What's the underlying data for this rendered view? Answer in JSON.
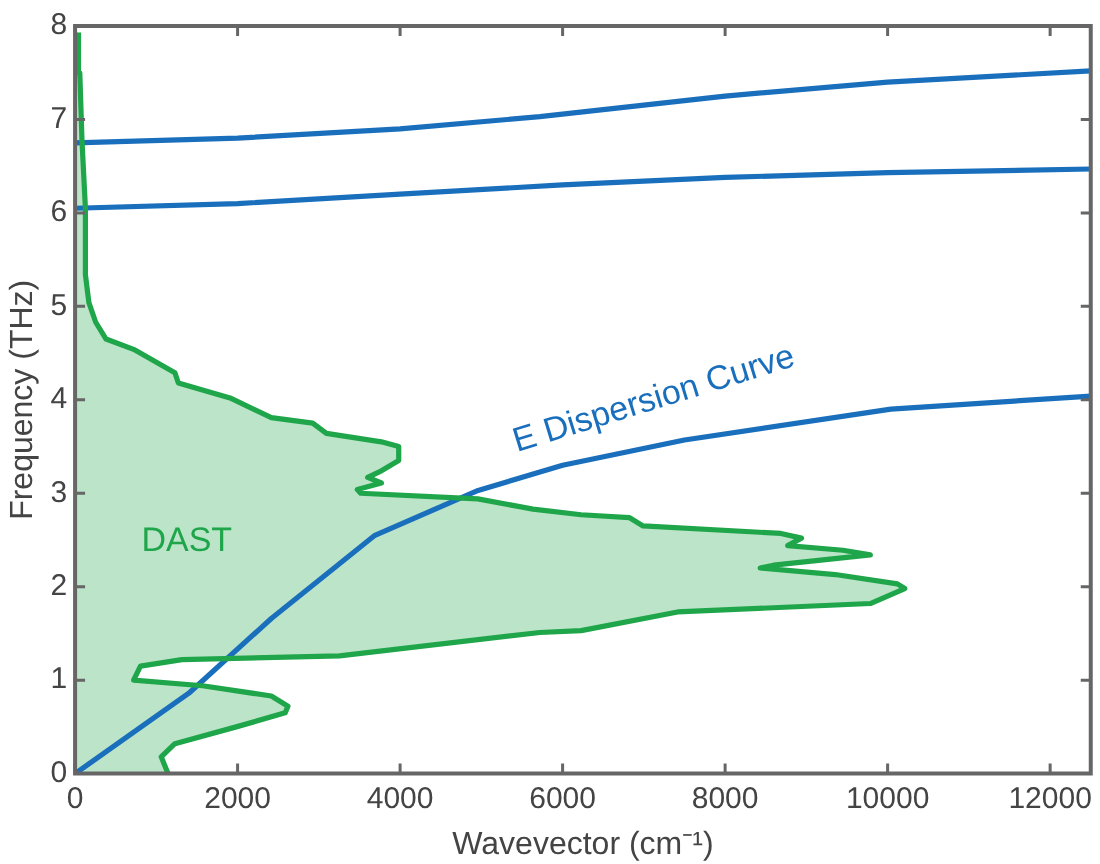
{
  "chart_data": {
    "type": "line",
    "xlabel": "Wavevector (cm⁻¹)",
    "ylabel": "Frequency (THz)",
    "xlim": [
      0,
      12500
    ],
    "ylim": [
      0,
      8
    ],
    "xticks": [
      0,
      2000,
      4000,
      6000,
      8000,
      10000,
      12000
    ],
    "yticks": [
      0,
      1,
      2,
      3,
      4,
      5,
      6,
      7,
      8
    ],
    "grid": false,
    "legend": false,
    "marker": "none",
    "line_style": "solid",
    "series": [
      {
        "type": "area",
        "color": "#1fa54a",
        "x": [
          1144,
          1060,
          1228,
          1983,
          2585,
          2620,
          2415,
          1568,
          720,
          805,
          1314,
          3254,
          5720,
          6228,
          7415,
          9787,
          10211,
          10120,
          9355,
          8432,
          8597,
          9787,
          9450,
          8770,
          8940,
          8686,
          6990,
          6820,
          6228,
          5635,
          4957,
          3515,
          3474,
          3770,
          3601,
          3770,
          3983,
          3983,
          3770,
          3093,
          2924,
          2415,
          1907,
          1271,
          1228,
          720,
          381,
          254,
          170,
          127,
          127,
          85,
          58,
          42
        ],
        "values": [
          0,
          0.18,
          0.32,
          0.5,
          0.65,
          0.72,
          0.83,
          0.94,
          1.0,
          1.15,
          1.22,
          1.26,
          1.51,
          1.53,
          1.73,
          1.82,
          1.98,
          2.03,
          2.13,
          2.2,
          2.23,
          2.34,
          2.39,
          2.44,
          2.52,
          2.57,
          2.65,
          2.74,
          2.77,
          2.83,
          2.94,
          3.0,
          3.04,
          3.11,
          3.17,
          3.24,
          3.35,
          3.5,
          3.55,
          3.64,
          3.75,
          3.81,
          4.02,
          4.18,
          4.29,
          4.54,
          4.65,
          4.83,
          5.04,
          5.34,
          6.05,
          6.77,
          7.5,
          7.93
        ]
      },
      {
        "type": "line",
        "color": "#1a6fbd",
        "x": [
          0,
          1400,
          2415,
          3690,
          4960,
          6000,
          7500,
          10040,
          12500
        ],
        "values": [
          0,
          0.86,
          1.66,
          2.55,
          3.03,
          3.3,
          3.57,
          3.9,
          4.04
        ]
      },
      {
        "type": "line",
        "color": "#1a6fbd",
        "x": [
          0,
          2000,
          4000,
          6000,
          8000,
          10000,
          12500
        ],
        "values": [
          6.05,
          6.1,
          6.2,
          6.3,
          6.38,
          6.43,
          6.47
        ]
      },
      {
        "type": "line",
        "color": "#1a6fbd",
        "x": [
          0,
          2000,
          4000,
          5720,
          8000,
          10000,
          12500
        ],
        "values": [
          6.75,
          6.8,
          6.9,
          7.03,
          7.25,
          7.4,
          7.52
        ]
      }
    ],
    "annotations": [
      "DAST",
      "E Dispersion Curve"
    ]
  }
}
